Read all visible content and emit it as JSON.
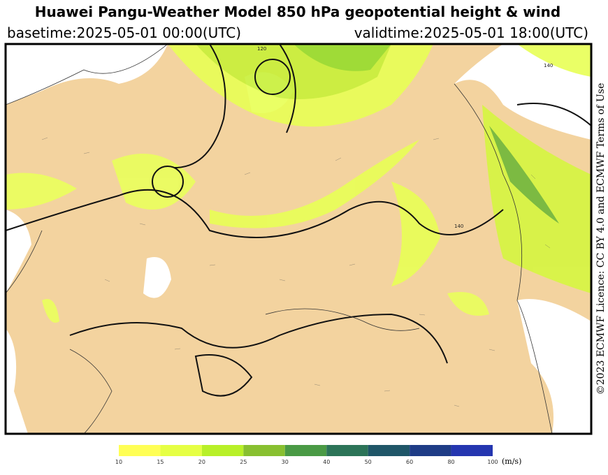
{
  "header": {
    "title": "Huawei Pangu-Weather Model 850 hPa geopotential height & wind",
    "basetime": "basetime:2025-05-01 00:00(UTC)",
    "validtime": "validtime:2025-05-01 18:00(UTC)"
  },
  "map": {
    "contour_labels": [
      "120",
      "140",
      "140"
    ]
  },
  "licence": "©2023 ECMWF Licence: CC BY 4.0 and ECMWF Terms of Use",
  "colorbar": {
    "ticks": [
      10,
      15,
      20,
      25,
      30,
      40,
      50,
      60,
      80,
      100
    ],
    "colors": [
      "#ffff55",
      "#e6ff44",
      "#b8f028",
      "#88c030",
      "#4a9a45",
      "#2c7458",
      "#1f5668",
      "#1e3c86",
      "#2436b0"
    ],
    "unit": "(m/s)"
  }
}
